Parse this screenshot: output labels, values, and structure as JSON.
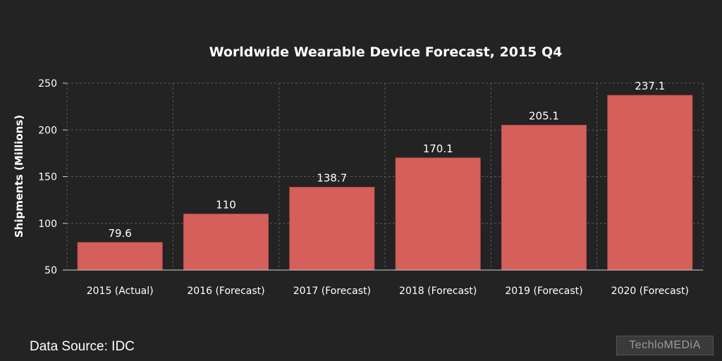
{
  "chart_data": {
    "type": "bar",
    "title": "Worldwide Wearable Device Forecast, 2015 Q4",
    "ylabel": "Shipments (Millions)",
    "xlabel": "",
    "categories": [
      "2015 (Actual)",
      "2016 (Forecast)",
      "2017 (Forecast)",
      "2018 (Forecast)",
      "2019 (Forecast)",
      "2020 (Forecast)"
    ],
    "values": [
      79.6,
      110,
      138.7,
      170.1,
      205.1,
      237.1
    ],
    "data_labels": [
      "79.6",
      "110",
      "138.7",
      "170.1",
      "205.1",
      "237.1"
    ],
    "ylim": [
      50,
      250
    ],
    "yticks": [
      50,
      100,
      150,
      200,
      250
    ],
    "grid": true,
    "bar_color": "#d55f5b",
    "background_color": "#232323"
  },
  "footer": {
    "source": "Data Source: IDC",
    "logo_text": "TechloMEDiA"
  }
}
